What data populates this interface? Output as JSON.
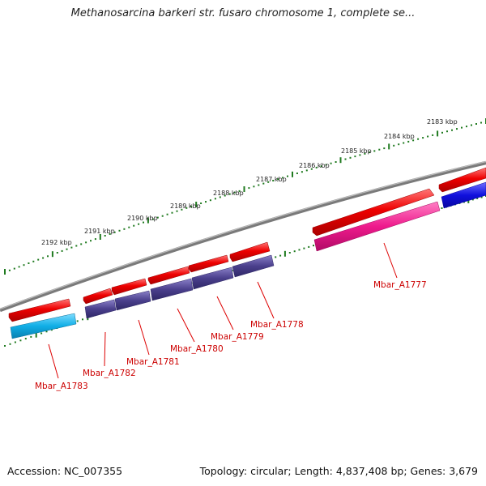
{
  "title": "Methanosarcina barkeri str. fusaro chromosome 1, complete se...",
  "accession": "Accession: NC_007355",
  "topology": "Topology: circular; Length: 4,837,408 bp; Genes: 3,679",
  "kbp_labels": [
    "2183 kbp",
    "2184 kbp",
    "2185 kbp",
    "2186 kbp",
    "2187 kbp",
    "2188 kbp",
    "2189 kbp",
    "2190 kbp",
    "2191 kbp",
    "2192 kbp"
  ],
  "gene_labels": [
    "Mbar_A1777",
    "Mbar_A1778",
    "Mbar_A1779",
    "Mbar_A1780",
    "Mbar_A1781",
    "Mbar_A1782",
    "Mbar_A1783"
  ],
  "colors": {
    "backbone": "#808080",
    "ticks": "#1f7a1f",
    "forward_gene": "#ee0000",
    "gene_purple": "#4a3f8c",
    "gene_magenta": "#ee1a8c",
    "gene_cyan": "#10aee6",
    "gene_blue": "#1010dd",
    "label": "#cc0000"
  }
}
